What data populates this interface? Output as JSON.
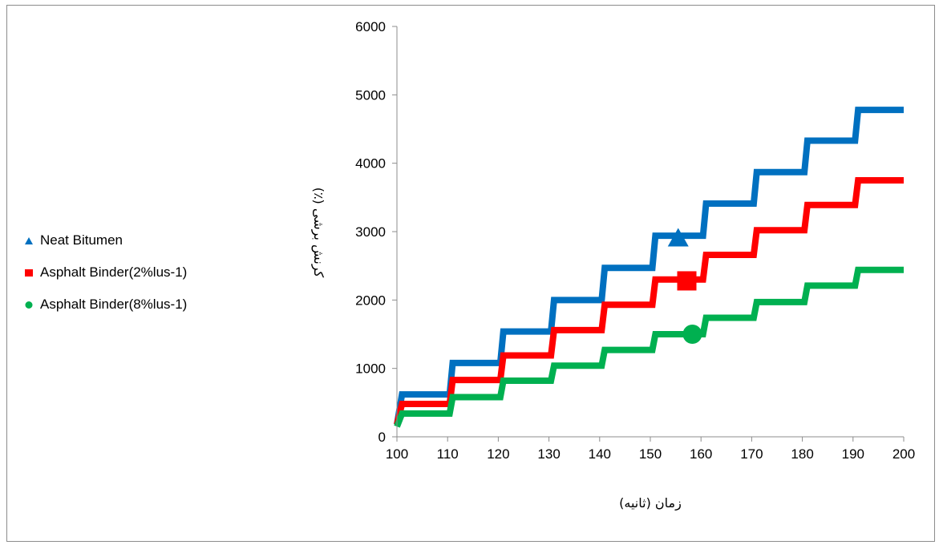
{
  "chart_data": {
    "type": "line",
    "title": "",
    "xlabel": "زمان (ثانیه)",
    "ylabel": "کرنش برشی (٪)",
    "xlim": [
      100,
      200
    ],
    "ylim": [
      0,
      6000
    ],
    "x_ticks": [
      "100",
      "110",
      "120",
      "130",
      "140",
      "150",
      "160",
      "170",
      "180",
      "190",
      "200"
    ],
    "y_ticks": [
      "0",
      "1000",
      "2000",
      "3000",
      "4000",
      "5000",
      "6000"
    ],
    "grid": false,
    "legend_position": "left",
    "series": [
      {
        "name": "Neat Bitumen",
        "color": "#0070c0",
        "marker": "triangle",
        "step_times": [
          100,
          101,
          111,
          121,
          131,
          141,
          151,
          161,
          171,
          181,
          191,
          200
        ],
        "levels": [
          180,
          620,
          1080,
          1540,
          2000,
          2470,
          2940,
          3410,
          3870,
          4330,
          4780,
          4780
        ],
        "highlight": {
          "x": 155.5,
          "y": 2900
        }
      },
      {
        "name": "Asphalt Binder(2%lus-1)",
        "color": "#ff0000",
        "marker": "square",
        "step_times": [
          100,
          101,
          111,
          121,
          131,
          141,
          151,
          161,
          171,
          181,
          191,
          200
        ],
        "levels": [
          180,
          480,
          830,
          1190,
          1560,
          1930,
          2300,
          2660,
          3020,
          3390,
          3750,
          3750
        ],
        "highlight": {
          "x": 157.2,
          "y": 2280
        }
      },
      {
        "name": "Asphalt Binder(8%lus-1)",
        "color": "#00b050",
        "marker": "circle",
        "step_times": [
          100,
          101,
          111,
          121,
          131,
          141,
          151,
          161,
          171,
          181,
          191,
          200
        ],
        "levels": [
          150,
          340,
          580,
          820,
          1040,
          1270,
          1500,
          1740,
          1970,
          2210,
          2440,
          2440
        ],
        "highlight": {
          "x": 158.3,
          "y": 1500
        }
      }
    ]
  }
}
